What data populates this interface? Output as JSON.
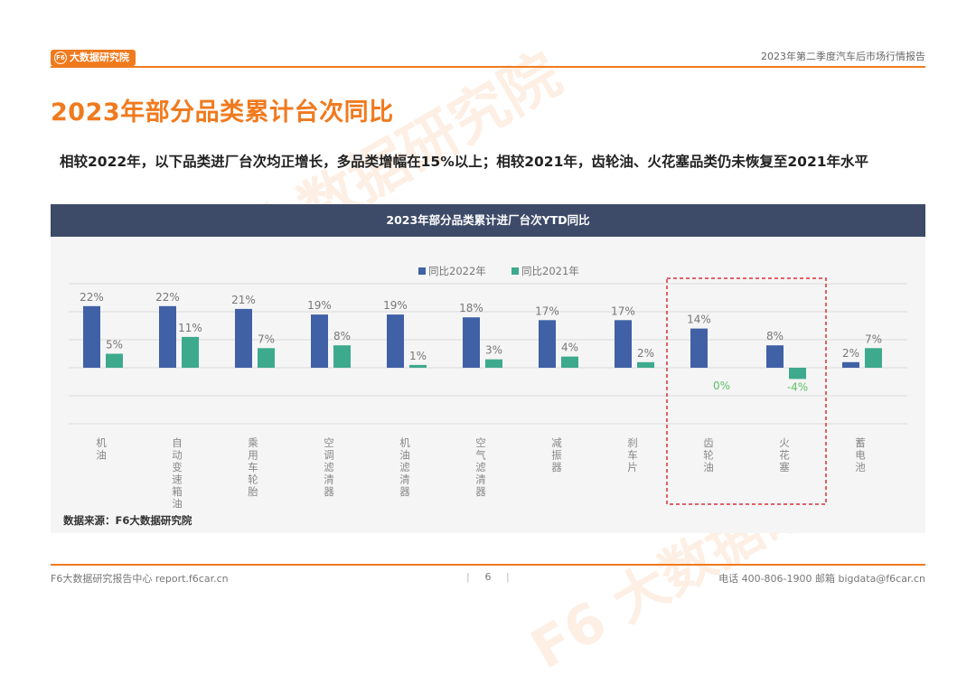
{
  "header": {
    "logo_text": "大数据研究院",
    "report_name": "2023年第二季度汽车后市场行情报告"
  },
  "page_title": "2023年部分品类累计台次同比",
  "summary": "相较2022年，以下品类进厂台次均正增长，多品类增幅在15%以上；相较2021年，齿轮油、火花塞品类仍未恢复至2021年水平",
  "colors": {
    "accent": "#f07a1e",
    "series_2022": "#4061a6",
    "series_2021": "#3eaa8d",
    "header_bar": "#3d4a68",
    "highlight": "#d9303a"
  },
  "chart_data": {
    "type": "bar",
    "title": "2023年部分品类累计进厂台次YTD同比",
    "legend_position": "top-center",
    "grid": true,
    "ylim": [
      -12,
      31
    ],
    "categories": [
      "机油",
      "自动变速箱油",
      "乘用车轮胎",
      "空调滤清器",
      "机油滤清器",
      "空气滤清器",
      "减振器",
      "刹车片",
      "齿轮油",
      "火花塞",
      "蓄电池"
    ],
    "series": [
      {
        "name": "同比2022年",
        "values": [
          22,
          22,
          21,
          19,
          19,
          18,
          17,
          17,
          14,
          8,
          2
        ],
        "labels": [
          "22%",
          "22%",
          "21%",
          "19%",
          "19%",
          "18%",
          "17%",
          "17%",
          "14%",
          "8%",
          "2%"
        ]
      },
      {
        "name": "同比2021年",
        "values": [
          5,
          11,
          7,
          8,
          1,
          3,
          4,
          2,
          0,
          -4,
          7
        ],
        "labels": [
          "5%",
          "11%",
          "7%",
          "8%",
          "1%",
          "3%",
          "4%",
          "2%",
          "0%",
          "-4%",
          "7%"
        ]
      }
    ],
    "highlighted_categories": [
      "齿轮油",
      "火花塞"
    ],
    "source": "数据来源：F6大数据研究院"
  },
  "footer": {
    "left": "F6大数据研究报告中心 report.f6car.cn",
    "page_number": "6",
    "right": "电话 400-806-1900  邮箱 bigdata@f6car.cn"
  }
}
